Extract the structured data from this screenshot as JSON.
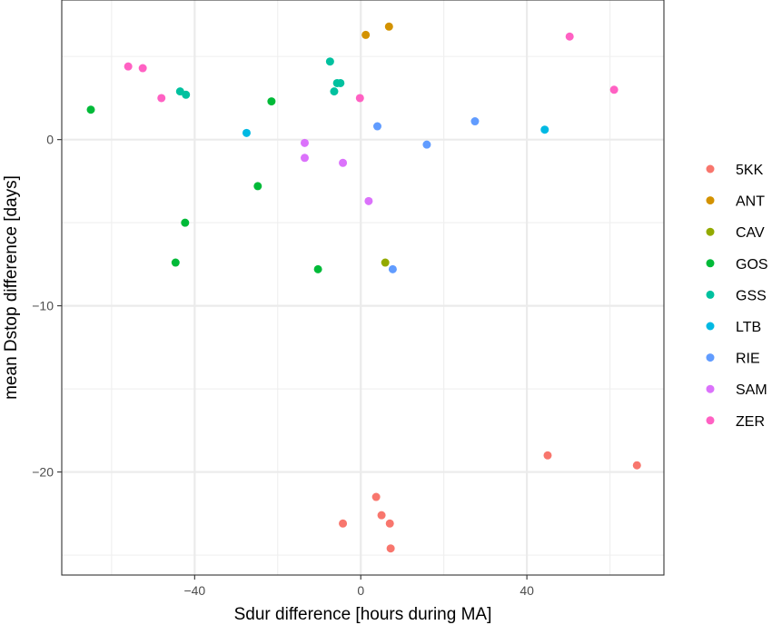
{
  "chart_data": {
    "type": "scatter",
    "title": "",
    "xlabel": "Sdur difference [hours during MA]",
    "ylabel": "mean Dstop difference [days]",
    "xlim": [
      -72,
      73
    ],
    "ylim": [
      -26.2,
      8.4
    ],
    "x_ticks": [
      -40,
      0,
      40
    ],
    "y_ticks": [
      0,
      -10,
      -20
    ],
    "x_tick_labels": [
      "−40",
      "0",
      "40"
    ],
    "y_tick_labels": [
      "0",
      "−10",
      "−20"
    ],
    "grid": true,
    "legend_position": "right",
    "series": [
      {
        "name": "5KK",
        "color": "#F8766D",
        "points": [
          [
            45,
            -19.0
          ],
          [
            66.5,
            -19.6
          ],
          [
            3.7,
            -21.5
          ],
          [
            5,
            -22.6
          ],
          [
            -4.3,
            -23.1
          ],
          [
            7,
            -23.1
          ],
          [
            7.2,
            -24.6
          ]
        ]
      },
      {
        "name": "ANT",
        "color": "#D39200",
        "points": [
          [
            1.2,
            6.3
          ],
          [
            6.8,
            6.8
          ]
        ]
      },
      {
        "name": "CAV",
        "color": "#93AA00",
        "points": [
          [
            5.9,
            -7.4
          ]
        ]
      },
      {
        "name": "GOS",
        "color": "#00BA38",
        "points": [
          [
            -65,
            1.8
          ],
          [
            -21.5,
            2.3
          ],
          [
            -24.8,
            -2.8
          ],
          [
            -42.3,
            -5.0
          ],
          [
            -44.6,
            -7.4
          ],
          [
            -10.3,
            -7.8
          ]
        ]
      },
      {
        "name": "GSS",
        "color": "#00C19F",
        "points": [
          [
            -43.5,
            2.9
          ],
          [
            -42.1,
            2.7
          ],
          [
            -7.4,
            4.7
          ],
          [
            -5.7,
            3.4
          ],
          [
            -4.9,
            3.4
          ],
          [
            -6.4,
            2.9
          ]
        ]
      },
      {
        "name": "LTB",
        "color": "#00B9E3",
        "points": [
          [
            -27.5,
            0.4
          ],
          [
            44.3,
            0.6
          ]
        ]
      },
      {
        "name": "RIE",
        "color": "#619CFF",
        "points": [
          [
            4,
            0.8
          ],
          [
            27.5,
            1.1
          ],
          [
            15.9,
            -0.3
          ],
          [
            7.7,
            -7.8
          ]
        ]
      },
      {
        "name": "SAM",
        "color": "#DB72FB",
        "points": [
          [
            -13.5,
            -0.2
          ],
          [
            -13.5,
            -1.1
          ],
          [
            -4.3,
            -1.4
          ],
          [
            1.9,
            -3.7
          ]
        ]
      },
      {
        "name": "ZER",
        "color": "#FF61C3",
        "points": [
          [
            -56,
            4.4
          ],
          [
            -52.5,
            4.3
          ],
          [
            -48,
            2.5
          ],
          [
            -0.2,
            2.5
          ],
          [
            50.3,
            6.2
          ],
          [
            61,
            3.0
          ]
        ]
      }
    ]
  }
}
